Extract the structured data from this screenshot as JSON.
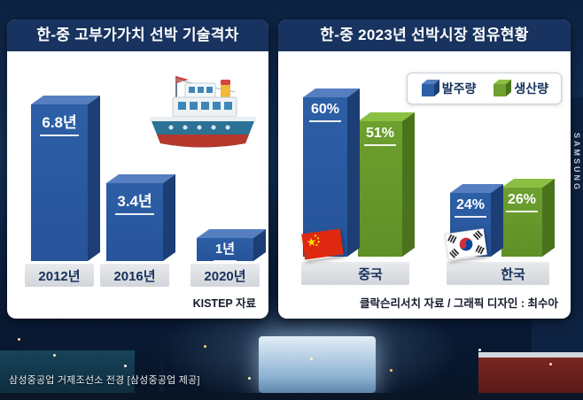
{
  "left_panel": {
    "value_labels": [
      "6.8년",
      "3.4년",
      "1년"
    ]
  },
  "right_panel": {
    "value_labels": [
      [
        "60%",
        "51%"
      ],
      [
        "24%",
        "26%"
      ]
    ]
  },
  "caption": "삼성중공업 거제조선소 전경 [삼성중공업 제공]",
  "background": {
    "crane_text": "SAMSUNG"
  },
  "colors": {
    "panel_header_navy": "#18335f",
    "orders_blue": "#2d5fa6",
    "production_green": "#6da02f",
    "strip_gray": "#d7d9dd"
  },
  "chart_data": [
    {
      "type": "bar",
      "title": "한-중 고부가가치 선박 기술격차",
      "categories": [
        "2012년",
        "2016년",
        "2020년"
      ],
      "values": [
        6.8,
        3.4,
        1
      ],
      "unit": "년",
      "source": "KISTEP 자료",
      "grid": false,
      "legend_position": "none"
    },
    {
      "type": "bar",
      "title": "한-중 2023년 선박시장 점유현황",
      "categories": [
        "중국",
        "한국"
      ],
      "series": [
        {
          "name": "발주량",
          "values": [
            60,
            24
          ],
          "color": "#2d5fa6"
        },
        {
          "name": "생산량",
          "values": [
            51,
            26
          ],
          "color": "#6da02f"
        }
      ],
      "unit": "%",
      "source": "클락슨리서치 자료 / 그래픽 디자인 : 최수아",
      "grid": false,
      "legend_position": "top-right"
    }
  ]
}
